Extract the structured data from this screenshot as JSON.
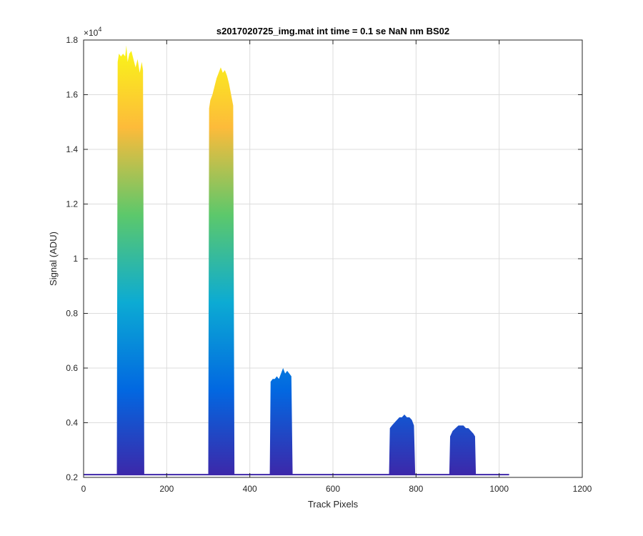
{
  "chart_data": {
    "type": "area",
    "title": "s2017020725_img.mat int time = 0.1 se  NaN nm BS02",
    "xlabel": "Track Pixels",
    "ylabel": "Signal (ADU)",
    "xlim": [
      0,
      1200
    ],
    "ylim": [
      0.2,
      1.8
    ],
    "y_exponent_label": "×10",
    "y_exponent_power": "4",
    "xticks": [
      0,
      200,
      400,
      600,
      800,
      1000,
      1200
    ],
    "xtick_labels": [
      "0",
      "200",
      "400",
      "600",
      "800",
      "1000",
      "1200"
    ],
    "yticks": [
      0.2,
      0.4,
      0.6,
      0.8,
      1.0,
      1.2,
      1.4,
      1.6,
      1.8
    ],
    "ytick_labels": [
      "0.2",
      "0.4",
      "0.6",
      "0.8",
      "1",
      "1.2",
      "1.4",
      "1.6",
      "1.8"
    ],
    "grid": true,
    "colormap": [
      "#3e26a8",
      "#0268e1",
      "#0cabd3",
      "#5cc86b",
      "#fdbb3a",
      "#f9fb15"
    ],
    "baseline": 0.21,
    "data_range_x": [
      0,
      1024
    ],
    "peaks": [
      {
        "x": [
          80,
          82,
          85,
          90,
          95,
          100,
          103,
          106,
          110,
          115,
          120,
          125,
          130,
          135,
          140,
          143,
          146
        ],
        "y": [
          0.21,
          1.72,
          1.75,
          1.74,
          1.75,
          1.74,
          1.78,
          1.72,
          1.75,
          1.76,
          1.73,
          1.7,
          1.73,
          1.68,
          1.72,
          1.69,
          0.21
        ]
      },
      {
        "x": [
          300,
          302,
          305,
          310,
          315,
          320,
          325,
          330,
          335,
          340,
          345,
          350,
          355,
          360,
          363
        ],
        "y": [
          0.21,
          1.55,
          1.58,
          1.6,
          1.63,
          1.66,
          1.68,
          1.7,
          1.68,
          1.69,
          1.67,
          1.64,
          1.6,
          1.56,
          0.21
        ]
      },
      {
        "x": [
          448,
          450,
          455,
          460,
          465,
          470,
          475,
          480,
          485,
          490,
          495,
          500,
          503
        ],
        "y": [
          0.21,
          0.55,
          0.56,
          0.56,
          0.57,
          0.56,
          0.58,
          0.6,
          0.58,
          0.59,
          0.58,
          0.57,
          0.21
        ]
      },
      {
        "x": [
          735,
          737,
          742,
          748,
          754,
          760,
          766,
          772,
          778,
          784,
          790,
          795,
          798
        ],
        "y": [
          0.21,
          0.38,
          0.39,
          0.4,
          0.41,
          0.42,
          0.42,
          0.43,
          0.42,
          0.42,
          0.41,
          0.39,
          0.21
        ]
      },
      {
        "x": [
          880,
          882,
          888,
          895,
          902,
          908,
          914,
          920,
          926,
          932,
          938,
          942,
          944
        ],
        "y": [
          0.21,
          0.35,
          0.37,
          0.38,
          0.39,
          0.39,
          0.39,
          0.38,
          0.38,
          0.37,
          0.36,
          0.35,
          0.21
        ]
      }
    ]
  }
}
